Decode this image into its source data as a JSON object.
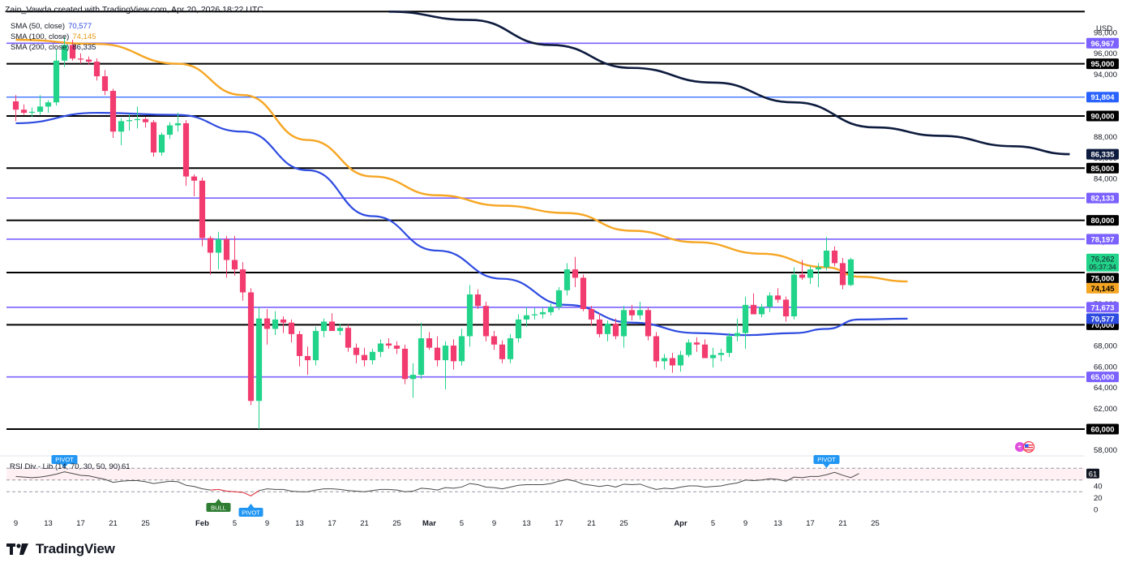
{
  "header": {
    "credit": "Zain_Vawda created with TradingView.com, Apr 20, 2026 18:22 UTC"
  },
  "legend": [
    {
      "label": "SMA (50, close)",
      "value": "70,577",
      "color": "#2e4be0"
    },
    {
      "label": "SMA (100, close)",
      "value": "74,145",
      "color": "#f6a623"
    },
    {
      "label": "SMA (200, close)",
      "value": "86,335",
      "color": "#0d1b3e"
    }
  ],
  "footer": {
    "brand": "TradingView"
  },
  "chart_data": {
    "type": "candlestick",
    "currency": "USD",
    "y_range": [
      57000,
      100000
    ],
    "y_ticks": [
      58000,
      60000,
      62000,
      64000,
      66000,
      68000,
      70000,
      72000,
      74000,
      76000,
      78000,
      80000,
      82000,
      84000,
      86000,
      88000,
      90000,
      92000,
      94000,
      96000,
      98000
    ],
    "x_ticks": [
      {
        "label": "9",
        "i": 0
      },
      {
        "label": "13",
        "i": 4
      },
      {
        "label": "17",
        "i": 8
      },
      {
        "label": "21",
        "i": 12
      },
      {
        "label": "25",
        "i": 16
      },
      {
        "label": "Feb",
        "i": 23,
        "bold": true
      },
      {
        "label": "5",
        "i": 27
      },
      {
        "label": "9",
        "i": 31
      },
      {
        "label": "13",
        "i": 35
      },
      {
        "label": "17",
        "i": 39
      },
      {
        "label": "21",
        "i": 43
      },
      {
        "label": "25",
        "i": 47
      },
      {
        "label": "Mar",
        "i": 51,
        "bold": true
      },
      {
        "label": "5",
        "i": 55
      },
      {
        "label": "9",
        "i": 59
      },
      {
        "label": "13",
        "i": 63
      },
      {
        "label": "17",
        "i": 67
      },
      {
        "label": "21",
        "i": 71
      },
      {
        "label": "25",
        "i": 75
      },
      {
        "label": "Apr",
        "i": 82,
        "bold": true
      },
      {
        "label": "5",
        "i": 86
      },
      {
        "label": "9",
        "i": 90
      },
      {
        "label": "13",
        "i": 94
      },
      {
        "label": "17",
        "i": 98
      },
      {
        "label": "21",
        "i": 102
      },
      {
        "label": "25",
        "i": 106
      }
    ],
    "candles": [
      {
        "o": 91400,
        "h": 92000,
        "l": 89500,
        "c": 90600
      },
      {
        "o": 90600,
        "h": 91100,
        "l": 90100,
        "c": 90300
      },
      {
        "o": 90300,
        "h": 90800,
        "l": 89900,
        "c": 90400
      },
      {
        "o": 90400,
        "h": 92000,
        "l": 90100,
        "c": 90900
      },
      {
        "o": 90900,
        "h": 91500,
        "l": 90300,
        "c": 91300
      },
      {
        "o": 91300,
        "h": 96400,
        "l": 91000,
        "c": 95300
      },
      {
        "o": 95300,
        "h": 97600,
        "l": 94700,
        "c": 96800
      },
      {
        "o": 96800,
        "h": 97300,
        "l": 95300,
        "c": 95500
      },
      {
        "o": 95500,
        "h": 96000,
        "l": 95000,
        "c": 95400
      },
      {
        "o": 95400,
        "h": 95700,
        "l": 94900,
        "c": 95200
      },
      {
        "o": 95200,
        "h": 95500,
        "l": 93400,
        "c": 93800
      },
      {
        "o": 93800,
        "h": 94400,
        "l": 92000,
        "c": 92400
      },
      {
        "o": 92400,
        "h": 92600,
        "l": 87900,
        "c": 88500
      },
      {
        "o": 88500,
        "h": 89800,
        "l": 87200,
        "c": 89500
      },
      {
        "o": 89500,
        "h": 90200,
        "l": 88600,
        "c": 89600
      },
      {
        "o": 89600,
        "h": 90900,
        "l": 88800,
        "c": 89700
      },
      {
        "o": 89700,
        "h": 89900,
        "l": 88900,
        "c": 89400
      },
      {
        "o": 89400,
        "h": 89600,
        "l": 86100,
        "c": 86500
      },
      {
        "o": 86500,
        "h": 88400,
        "l": 86200,
        "c": 88200
      },
      {
        "o": 88200,
        "h": 89400,
        "l": 87800,
        "c": 89100
      },
      {
        "o": 89100,
        "h": 90300,
        "l": 88500,
        "c": 89300
      },
      {
        "o": 89300,
        "h": 89600,
        "l": 83300,
        "c": 84200
      },
      {
        "o": 84200,
        "h": 84400,
        "l": 82300,
        "c": 83800
      },
      {
        "o": 83800,
        "h": 84100,
        "l": 77500,
        "c": 78300
      },
      {
        "o": 78300,
        "h": 78500,
        "l": 74800,
        "c": 76900
      },
      {
        "o": 76900,
        "h": 78900,
        "l": 75300,
        "c": 78200
      },
      {
        "o": 78200,
        "h": 78500,
        "l": 74500,
        "c": 76200
      },
      {
        "o": 76200,
        "h": 78500,
        "l": 74700,
        "c": 75300
      },
      {
        "o": 75300,
        "h": 76000,
        "l": 72300,
        "c": 73100
      },
      {
        "o": 73100,
        "h": 73500,
        "l": 62300,
        "c": 62700
      },
      {
        "o": 62700,
        "h": 71700,
        "l": 60000,
        "c": 70600
      },
      {
        "o": 70600,
        "h": 71500,
        "l": 68100,
        "c": 69600
      },
      {
        "o": 69600,
        "h": 71300,
        "l": 69000,
        "c": 70500
      },
      {
        "o": 70500,
        "h": 70800,
        "l": 69200,
        "c": 70200
      },
      {
        "o": 70200,
        "h": 70500,
        "l": 68300,
        "c": 69100
      },
      {
        "o": 69100,
        "h": 69400,
        "l": 66000,
        "c": 67000
      },
      {
        "o": 67000,
        "h": 67900,
        "l": 65200,
        "c": 66600
      },
      {
        "o": 66600,
        "h": 69800,
        "l": 66100,
        "c": 69400
      },
      {
        "o": 69400,
        "h": 70600,
        "l": 68800,
        "c": 70300
      },
      {
        "o": 70300,
        "h": 71100,
        "l": 69400,
        "c": 69400
      },
      {
        "o": 69400,
        "h": 70100,
        "l": 69000,
        "c": 69700
      },
      {
        "o": 69700,
        "h": 70000,
        "l": 67400,
        "c": 67800
      },
      {
        "o": 67800,
        "h": 68200,
        "l": 66300,
        "c": 67100
      },
      {
        "o": 67100,
        "h": 67800,
        "l": 66000,
        "c": 66600
      },
      {
        "o": 66600,
        "h": 67700,
        "l": 66200,
        "c": 67400
      },
      {
        "o": 67400,
        "h": 68600,
        "l": 66900,
        "c": 68200
      },
      {
        "o": 68200,
        "h": 68700,
        "l": 67700,
        "c": 68000
      },
      {
        "o": 68000,
        "h": 68400,
        "l": 67200,
        "c": 67700
      },
      {
        "o": 67700,
        "h": 68100,
        "l": 64300,
        "c": 64800
      },
      {
        "o": 64800,
        "h": 66300,
        "l": 63000,
        "c": 65200
      },
      {
        "o": 65200,
        "h": 70200,
        "l": 64800,
        "c": 68700
      },
      {
        "o": 68700,
        "h": 69300,
        "l": 67600,
        "c": 67800
      },
      {
        "o": 67800,
        "h": 68900,
        "l": 66000,
        "c": 66600
      },
      {
        "o": 66600,
        "h": 68400,
        "l": 63800,
        "c": 68000
      },
      {
        "o": 68000,
        "h": 68600,
        "l": 65700,
        "c": 66500
      },
      {
        "o": 66500,
        "h": 69600,
        "l": 66100,
        "c": 68900
      },
      {
        "o": 68900,
        "h": 73800,
        "l": 67900,
        "c": 72900
      },
      {
        "o": 72900,
        "h": 73400,
        "l": 71500,
        "c": 71800
      },
      {
        "o": 71800,
        "h": 72200,
        "l": 68400,
        "c": 68900
      },
      {
        "o": 68900,
        "h": 69400,
        "l": 67600,
        "c": 68100
      },
      {
        "o": 68100,
        "h": 68500,
        "l": 66300,
        "c": 66700
      },
      {
        "o": 66700,
        "h": 69100,
        "l": 66300,
        "c": 68700
      },
      {
        "o": 68700,
        "h": 71000,
        "l": 68300,
        "c": 70500
      },
      {
        "o": 70500,
        "h": 71700,
        "l": 69800,
        "c": 70900
      },
      {
        "o": 70900,
        "h": 71600,
        "l": 70500,
        "c": 71000
      },
      {
        "o": 71000,
        "h": 71600,
        "l": 70600,
        "c": 71200
      },
      {
        "o": 71200,
        "h": 72000,
        "l": 70900,
        "c": 71700
      },
      {
        "o": 71700,
        "h": 73600,
        "l": 71400,
        "c": 73300
      },
      {
        "o": 73300,
        "h": 75900,
        "l": 72800,
        "c": 75300
      },
      {
        "o": 75300,
        "h": 76500,
        "l": 73600,
        "c": 74500
      },
      {
        "o": 74500,
        "h": 74800,
        "l": 71300,
        "c": 71500
      },
      {
        "o": 71500,
        "h": 71800,
        "l": 69900,
        "c": 70500
      },
      {
        "o": 70500,
        "h": 71100,
        "l": 68800,
        "c": 69100
      },
      {
        "o": 69100,
        "h": 70400,
        "l": 68400,
        "c": 70100
      },
      {
        "o": 70100,
        "h": 70600,
        "l": 68600,
        "c": 68900
      },
      {
        "o": 68900,
        "h": 71800,
        "l": 67800,
        "c": 71400
      },
      {
        "o": 71400,
        "h": 71900,
        "l": 70400,
        "c": 70900
      },
      {
        "o": 70900,
        "h": 72200,
        "l": 70500,
        "c": 71400
      },
      {
        "o": 71400,
        "h": 71700,
        "l": 68500,
        "c": 68900
      },
      {
        "o": 68900,
        "h": 69300,
        "l": 65900,
        "c": 66500
      },
      {
        "o": 66500,
        "h": 67200,
        "l": 65700,
        "c": 66800
      },
      {
        "o": 66800,
        "h": 67300,
        "l": 65400,
        "c": 66100
      },
      {
        "o": 66100,
        "h": 67500,
        "l": 65500,
        "c": 67100
      },
      {
        "o": 67100,
        "h": 68600,
        "l": 66900,
        "c": 68300
      },
      {
        "o": 68300,
        "h": 68800,
        "l": 67400,
        "c": 68100
      },
      {
        "o": 68100,
        "h": 68600,
        "l": 67000,
        "c": 66800
      },
      {
        "o": 66800,
        "h": 67800,
        "l": 65900,
        "c": 67100
      },
      {
        "o": 67100,
        "h": 67700,
        "l": 66500,
        "c": 67300
      },
      {
        "o": 67300,
        "h": 69200,
        "l": 66900,
        "c": 68900
      },
      {
        "o": 68900,
        "h": 70600,
        "l": 68400,
        "c": 69200
      },
      {
        "o": 69200,
        "h": 72700,
        "l": 67700,
        "c": 71900
      },
      {
        "o": 71900,
        "h": 73000,
        "l": 71000,
        "c": 71000
      },
      {
        "o": 71000,
        "h": 72000,
        "l": 70700,
        "c": 71700
      },
      {
        "o": 71700,
        "h": 73100,
        "l": 71200,
        "c": 72800
      },
      {
        "o": 72800,
        "h": 73500,
        "l": 72100,
        "c": 72400
      },
      {
        "o": 72400,
        "h": 72700,
        "l": 70300,
        "c": 70800
      },
      {
        "o": 70800,
        "h": 75500,
        "l": 70500,
        "c": 74800
      },
      {
        "o": 74800,
        "h": 76200,
        "l": 74300,
        "c": 74500
      },
      {
        "o": 74500,
        "h": 75600,
        "l": 73900,
        "c": 75300
      },
      {
        "o": 75300,
        "h": 75900,
        "l": 73600,
        "c": 75500
      },
      {
        "o": 75500,
        "h": 78400,
        "l": 75200,
        "c": 77100
      },
      {
        "o": 77100,
        "h": 77500,
        "l": 75600,
        "c": 75900
      },
      {
        "o": 75900,
        "h": 76400,
        "l": 73400,
        "c": 73800
      },
      {
        "o": 73800,
        "h": 76400,
        "l": 73700,
        "c": 76262
      }
    ],
    "sma50": [
      [
        0,
        89300
      ],
      [
        10,
        90300
      ],
      [
        20,
        90100
      ],
      [
        28,
        88500
      ],
      [
        36,
        84800
      ],
      [
        44,
        80400
      ],
      [
        52,
        77100
      ],
      [
        60,
        74400
      ],
      [
        68,
        71900
      ],
      [
        76,
        70200
      ],
      [
        84,
        69200
      ],
      [
        90,
        69000
      ],
      [
        96,
        69200
      ],
      [
        100,
        69600
      ],
      [
        104,
        70500
      ],
      [
        110,
        70577
      ]
    ],
    "sma100": [
      [
        0,
        97300
      ],
      [
        10,
        96900
      ],
      [
        20,
        95000
      ],
      [
        28,
        92000
      ],
      [
        36,
        87700
      ],
      [
        44,
        84200
      ],
      [
        52,
        82400
      ],
      [
        60,
        81400
      ],
      [
        68,
        80700
      ],
      [
        76,
        79000
      ],
      [
        84,
        77900
      ],
      [
        92,
        76800
      ],
      [
        100,
        75500
      ],
      [
        104,
        74600
      ],
      [
        110,
        74145
      ]
    ],
    "sma200": [
      [
        46,
        100000
      ],
      [
        56,
        99200
      ],
      [
        66,
        96800
      ],
      [
        76,
        94600
      ],
      [
        86,
        93200
      ],
      [
        96,
        91300
      ],
      [
        106,
        88900
      ],
      [
        114,
        88100
      ],
      [
        123,
        87100
      ],
      [
        130,
        86335
      ]
    ],
    "levels": [
      {
        "value": 96967,
        "label": "96,967",
        "kind": "purple"
      },
      {
        "value": 95000,
        "label": "95,000",
        "kind": "black"
      },
      {
        "value": 91804,
        "label": "91,804",
        "kind": "blue"
      },
      {
        "value": 90000,
        "label": "90,000",
        "kind": "black"
      },
      {
        "value": 85000,
        "label": "85,000",
        "kind": "black"
      },
      {
        "value": 82133,
        "label": "82,133",
        "kind": "purple"
      },
      {
        "value": 80000,
        "label": "80,000",
        "kind": "black"
      },
      {
        "value": 78197,
        "label": "78,197",
        "kind": "purple"
      },
      {
        "value": 75000,
        "label": "75,000",
        "kind": "black"
      },
      {
        "value": 71673,
        "label": "71,673",
        "kind": "purple"
      },
      {
        "value": 70000,
        "label": "70,000",
        "kind": "black"
      },
      {
        "value": 65000,
        "label": "65,000",
        "kind": "purple"
      },
      {
        "value": 60000,
        "label": "60,000",
        "kind": "black"
      }
    ],
    "top_line_value": 100000,
    "price_tags": [
      {
        "value": 86335,
        "label": "86,335",
        "bg": "#0d1b3e",
        "color": "#ffffff"
      },
      {
        "value": 74145,
        "label": "74,145",
        "bg": "#f6a623",
        "color": "#000000"
      },
      {
        "value": 70577,
        "label": "70,577",
        "bg": "#2e4be0",
        "color": "#ffffff"
      }
    ],
    "last_price": {
      "value": 76262,
      "label": "76,262",
      "countdown": "05:37:34"
    },
    "rsi": {
      "label": "RSI Div - Lib (14, 70, 30, 50, 90)",
      "value": "61",
      "ticks": [
        40,
        20,
        0
      ],
      "series": [
        56,
        55,
        54,
        55,
        57,
        60,
        64,
        61,
        58,
        57,
        54,
        51,
        46,
        48,
        49,
        49,
        47,
        44,
        46,
        48,
        47,
        41,
        39,
        35,
        33,
        34,
        31,
        30,
        29,
        23,
        32,
        35,
        34,
        34,
        31,
        30,
        30,
        33,
        35,
        35,
        34,
        32,
        31,
        30,
        32,
        34,
        34,
        33,
        30,
        31,
        36,
        35,
        33,
        37,
        36,
        38,
        44,
        42,
        38,
        37,
        35,
        38,
        41,
        42,
        42,
        42,
        44,
        48,
        51,
        48,
        43,
        41,
        39,
        41,
        38,
        43,
        42,
        43,
        38,
        34,
        36,
        35,
        38,
        40,
        40,
        38,
        39,
        40,
        43,
        45,
        50,
        49,
        50,
        52,
        51,
        48,
        55,
        54,
        56,
        56,
        59,
        63,
        58,
        54,
        61
      ],
      "markers": [
        {
          "i": 6,
          "label": "PIVOT",
          "type": "bear"
        },
        {
          "i": 25,
          "label": "BULL",
          "type": "bull"
        },
        {
          "i": 29,
          "label": "PIVOT",
          "type": "bull"
        },
        {
          "i": 100,
          "label": "PIVOT",
          "type": "bear"
        }
      ]
    }
  }
}
